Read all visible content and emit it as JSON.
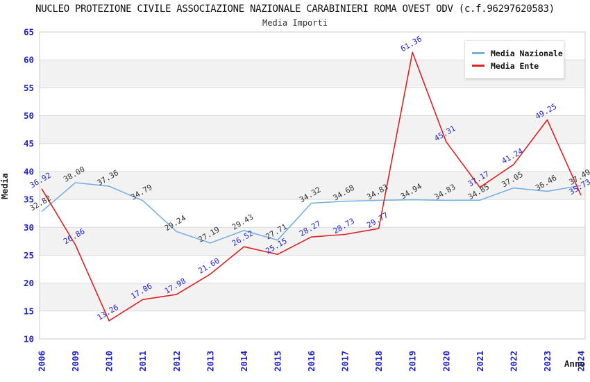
{
  "header": {
    "title": "NUCLEO PROTEZIONE CIVILE ASSOCIAZIONE NAZIONALE CARABINIERI ROMA OVEST ODV (c.f.96297620583)",
    "subtitle": "Media Importi"
  },
  "legend": {
    "items": [
      {
        "label": "Media Nazionale",
        "color": "#77B1E4"
      },
      {
        "label": "Media Ente",
        "color": "#E02020"
      }
    ]
  },
  "axes": {
    "y_label": "Media",
    "x_label": "Anno",
    "y_ticks": [
      10,
      15,
      20,
      25,
      30,
      35,
      40,
      45,
      50,
      55,
      60,
      65
    ]
  },
  "chart_data": {
    "type": "line",
    "title": "Media Importi",
    "xlabel": "Anno",
    "ylabel": "Media",
    "ylim": [
      10,
      65
    ],
    "ytick_step": 5,
    "grid": "horizontal gridlines with alternating white/gray bands, legend top-right",
    "categories": [
      "2006",
      "2009",
      "2010",
      "2011",
      "2012",
      "2013",
      "2014",
      "2015",
      "2016",
      "2017",
      "2018",
      "2019",
      "2020",
      "2021",
      "2022",
      "2023",
      "2024"
    ],
    "series": [
      {
        "name": "Media Nazionale",
        "color": "#77B1E4",
        "label_color": "#333333",
        "values": [
          32.82,
          38.0,
          37.36,
          34.79,
          29.24,
          27.19,
          29.43,
          27.71,
          34.32,
          34.68,
          34.83,
          34.94,
          34.83,
          34.85,
          37.05,
          36.46,
          37.49
        ],
        "labels": [
          "32.82",
          "38.00",
          "37.36",
          "34.79",
          "29.24",
          "27.19",
          "29.43",
          "27.71",
          "34.32",
          "34.68",
          "34.83",
          "34.94",
          "34.83",
          "34.85",
          "37.05",
          "36.46",
          "37.49"
        ]
      },
      {
        "name": "Media Ente",
        "color": "#E02020",
        "label_color": "#2525CB",
        "values": [
          36.92,
          26.86,
          13.26,
          17.06,
          17.98,
          21.6,
          26.52,
          25.15,
          28.27,
          28.73,
          29.77,
          61.36,
          45.31,
          37.17,
          41.24,
          49.25,
          35.73
        ],
        "labels": [
          "36.92",
          "26.86",
          "13.26",
          "17.06",
          "17.98",
          "21.60",
          "26.52",
          "25.15",
          "28.27",
          "28.73",
          "29.77",
          "61.36",
          "45.31",
          "37.17",
          "41.24",
          "49.25",
          "35.73"
        ]
      }
    ]
  },
  "style": {
    "tick_color": "#2222CC",
    "band_color": "#F2F2F2",
    "grid_color": "#DBDBDB",
    "plot_border_color": "#CCCCCC",
    "axis_title_color": "#222222"
  }
}
